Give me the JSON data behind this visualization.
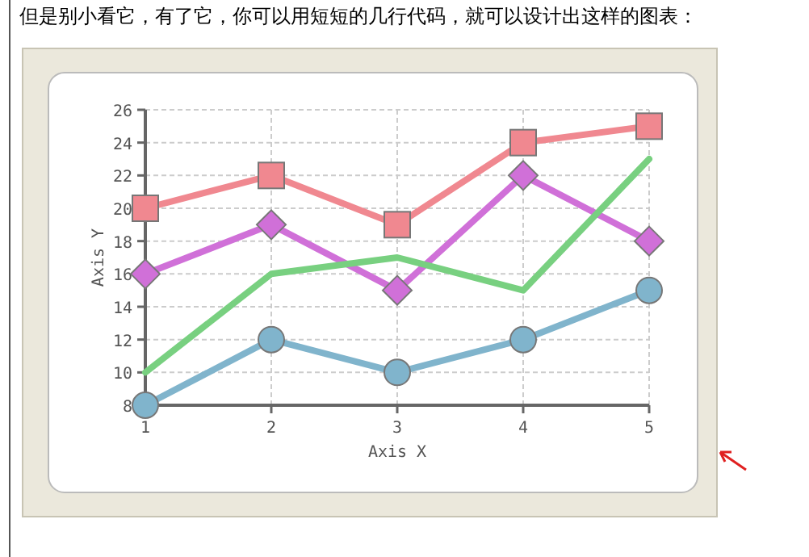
{
  "chart_data": {
    "type": "line",
    "title": "但是别小看它，有了它，你可以用短短的几行代码，就可以设计出这样的图表：",
    "xlabel": "Axis X",
    "ylabel": "Axis Y",
    "x": [
      1,
      2,
      3,
      4,
      5
    ],
    "xlim": [
      1,
      5
    ],
    "xticks": [
      1,
      2,
      3,
      4,
      5
    ],
    "ylim": [
      8,
      26
    ],
    "yticks": [
      8,
      10,
      12,
      14,
      16,
      18,
      20,
      22,
      24,
      26
    ],
    "grid": true,
    "series": [
      {
        "color": "#f08890",
        "marker": "square",
        "values": [
          20,
          22,
          19,
          24,
          25
        ]
      },
      {
        "color": "#d070d8",
        "marker": "diamond",
        "values": [
          16,
          19,
          15,
          22,
          18
        ]
      },
      {
        "color": "#78d080",
        "marker": "none",
        "values": [
          10,
          16,
          17,
          15,
          23
        ]
      },
      {
        "color": "#80b4cc",
        "marker": "circle",
        "values": [
          8,
          12,
          10,
          12,
          15
        ]
      }
    ]
  }
}
